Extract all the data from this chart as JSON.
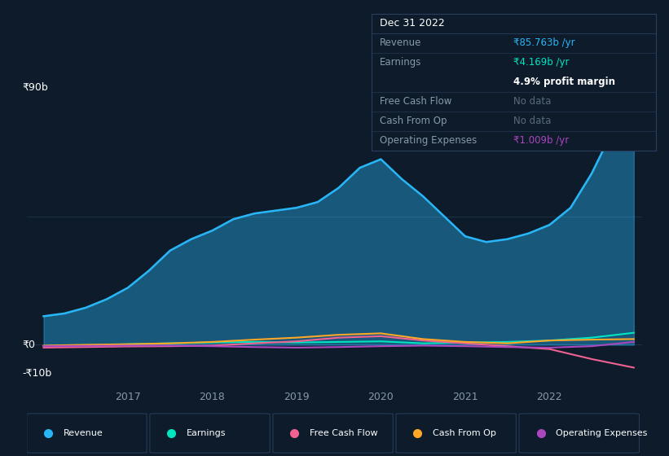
{
  "bg_color": "#0d1b2a",
  "plot_bg_color": "#0d1b2a",
  "grid_color": "#1e3048",
  "text_color": "#ffffff",
  "dim_text_color": "#8899aa",
  "ylabel_top": "₹90b",
  "ylabel_zero": "₹0",
  "ylabel_bottom": "-₹10b",
  "x_ticks": [
    2017,
    2018,
    2019,
    2020,
    2021,
    2022
  ],
  "revenue": {
    "label": "Revenue",
    "color": "#29b6f6",
    "x": [
      2016.0,
      2016.25,
      2016.5,
      2016.75,
      2017.0,
      2017.25,
      2017.5,
      2017.75,
      2018.0,
      2018.25,
      2018.5,
      2018.75,
      2019.0,
      2019.25,
      2019.5,
      2019.75,
      2020.0,
      2020.25,
      2020.5,
      2020.75,
      2021.0,
      2021.25,
      2021.5,
      2021.75,
      2022.0,
      2022.25,
      2022.5,
      2022.75,
      2023.0
    ],
    "y": [
      10,
      11,
      13,
      16,
      20,
      26,
      33,
      37,
      40,
      44,
      46,
      47,
      48,
      50,
      55,
      62,
      65,
      58,
      52,
      45,
      38,
      36,
      37,
      39,
      42,
      48,
      60,
      75,
      86
    ]
  },
  "earnings": {
    "label": "Earnings",
    "color": "#00e5c0",
    "x": [
      2016.0,
      2016.5,
      2017.0,
      2017.5,
      2018.0,
      2018.5,
      2019.0,
      2019.5,
      2020.0,
      2020.5,
      2021.0,
      2021.5,
      2022.0,
      2022.5,
      2023.0
    ],
    "y": [
      -0.5,
      -0.2,
      0.2,
      0.5,
      0.8,
      1.0,
      0.8,
      1.0,
      1.2,
      0.5,
      0.8,
      1.0,
      1.5,
      2.5,
      4.2
    ]
  },
  "free_cash_flow": {
    "label": "Free Cash Flow",
    "color": "#f06292",
    "x": [
      2016.0,
      2016.5,
      2017.0,
      2017.5,
      2018.0,
      2018.5,
      2019.0,
      2019.5,
      2020.0,
      2020.5,
      2021.0,
      2021.5,
      2022.0,
      2022.5,
      2023.0
    ],
    "y": [
      -1.0,
      -0.8,
      -0.6,
      -0.5,
      -0.3,
      0.5,
      1.2,
      2.5,
      3.0,
      1.5,
      0.5,
      -0.5,
      -1.5,
      -5.0,
      -8.0
    ]
  },
  "cash_from_op": {
    "label": "Cash From Op",
    "color": "#ffa726",
    "x": [
      2016.0,
      2016.5,
      2017.0,
      2017.5,
      2018.0,
      2018.5,
      2019.0,
      2019.5,
      2020.0,
      2020.5,
      2021.0,
      2021.5,
      2022.0,
      2022.5,
      2023.0
    ],
    "y": [
      -0.3,
      0.0,
      0.2,
      0.5,
      1.0,
      1.8,
      2.5,
      3.5,
      4.0,
      2.0,
      1.0,
      0.5,
      1.5,
      1.8,
      2.0
    ]
  },
  "operating_expenses": {
    "label": "Operating Expenses",
    "color": "#ab47bc",
    "x": [
      2016.0,
      2016.5,
      2017.0,
      2017.5,
      2018.0,
      2018.5,
      2019.0,
      2019.5,
      2020.0,
      2020.5,
      2021.0,
      2021.5,
      2022.0,
      2022.5,
      2023.0
    ],
    "y": [
      -0.5,
      -0.4,
      -0.3,
      -0.3,
      -0.5,
      -0.8,
      -1.0,
      -0.8,
      -0.5,
      -0.3,
      -0.5,
      -0.8,
      -1.0,
      -0.5,
      1.0
    ]
  },
  "info_box": {
    "title": "Dec 31 2022",
    "bg_color": "#0d1b2a",
    "border_color": "#2a3f5f",
    "rows": [
      {
        "label": "Revenue",
        "value": "₹85.763b /yr",
        "value_color": "#29b6f6",
        "extra": null,
        "extra_color": null
      },
      {
        "label": "Earnings",
        "value": "₹4.169b /yr",
        "value_color": "#00e5c0",
        "extra": "4.9% profit margin",
        "extra_color": "#ffffff"
      },
      {
        "label": "Free Cash Flow",
        "value": "No data",
        "value_color": "#5a6a7a",
        "extra": null,
        "extra_color": null
      },
      {
        "label": "Cash From Op",
        "value": "No data",
        "value_color": "#5a6a7a",
        "extra": null,
        "extra_color": null
      },
      {
        "label": "Operating Expenses",
        "value": "₹1.009b /yr",
        "value_color": "#ab47bc",
        "extra": null,
        "extra_color": null
      }
    ]
  },
  "legend": [
    {
      "label": "Revenue",
      "color": "#29b6f6"
    },
    {
      "label": "Earnings",
      "color": "#00e5c0"
    },
    {
      "label": "Free Cash Flow",
      "color": "#f06292"
    },
    {
      "label": "Cash From Op",
      "color": "#ffa726"
    },
    {
      "label": "Operating Expenses",
      "color": "#ab47bc"
    }
  ],
  "ylim": [
    -15,
    100
  ],
  "xlim": [
    2015.8,
    2023.1
  ]
}
